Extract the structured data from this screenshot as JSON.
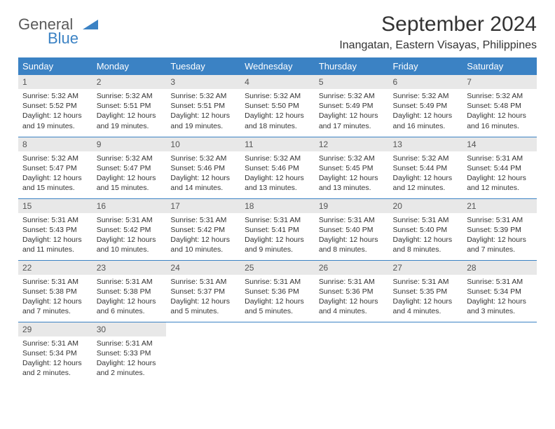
{
  "brand": {
    "name1": "General",
    "name2": "Blue",
    "color": "#3b82c4"
  },
  "title": "September 2024",
  "location": "Inangatan, Eastern Visayas, Philippines",
  "colors": {
    "header_bg": "#3b82c4",
    "header_text": "#ffffff",
    "daynum_bg": "#e8e8e8",
    "border": "#3b82c4",
    "text": "#333333"
  },
  "weekdays": [
    "Sunday",
    "Monday",
    "Tuesday",
    "Wednesday",
    "Thursday",
    "Friday",
    "Saturday"
  ],
  "days": [
    {
      "n": "1",
      "sr": "Sunrise: 5:32 AM",
      "ss": "Sunset: 5:52 PM",
      "dl": "Daylight: 12 hours and 19 minutes."
    },
    {
      "n": "2",
      "sr": "Sunrise: 5:32 AM",
      "ss": "Sunset: 5:51 PM",
      "dl": "Daylight: 12 hours and 19 minutes."
    },
    {
      "n": "3",
      "sr": "Sunrise: 5:32 AM",
      "ss": "Sunset: 5:51 PM",
      "dl": "Daylight: 12 hours and 19 minutes."
    },
    {
      "n": "4",
      "sr": "Sunrise: 5:32 AM",
      "ss": "Sunset: 5:50 PM",
      "dl": "Daylight: 12 hours and 18 minutes."
    },
    {
      "n": "5",
      "sr": "Sunrise: 5:32 AM",
      "ss": "Sunset: 5:49 PM",
      "dl": "Daylight: 12 hours and 17 minutes."
    },
    {
      "n": "6",
      "sr": "Sunrise: 5:32 AM",
      "ss": "Sunset: 5:49 PM",
      "dl": "Daylight: 12 hours and 16 minutes."
    },
    {
      "n": "7",
      "sr": "Sunrise: 5:32 AM",
      "ss": "Sunset: 5:48 PM",
      "dl": "Daylight: 12 hours and 16 minutes."
    },
    {
      "n": "8",
      "sr": "Sunrise: 5:32 AM",
      "ss": "Sunset: 5:47 PM",
      "dl": "Daylight: 12 hours and 15 minutes."
    },
    {
      "n": "9",
      "sr": "Sunrise: 5:32 AM",
      "ss": "Sunset: 5:47 PM",
      "dl": "Daylight: 12 hours and 15 minutes."
    },
    {
      "n": "10",
      "sr": "Sunrise: 5:32 AM",
      "ss": "Sunset: 5:46 PM",
      "dl": "Daylight: 12 hours and 14 minutes."
    },
    {
      "n": "11",
      "sr": "Sunrise: 5:32 AM",
      "ss": "Sunset: 5:46 PM",
      "dl": "Daylight: 12 hours and 13 minutes."
    },
    {
      "n": "12",
      "sr": "Sunrise: 5:32 AM",
      "ss": "Sunset: 5:45 PM",
      "dl": "Daylight: 12 hours and 13 minutes."
    },
    {
      "n": "13",
      "sr": "Sunrise: 5:32 AM",
      "ss": "Sunset: 5:44 PM",
      "dl": "Daylight: 12 hours and 12 minutes."
    },
    {
      "n": "14",
      "sr": "Sunrise: 5:31 AM",
      "ss": "Sunset: 5:44 PM",
      "dl": "Daylight: 12 hours and 12 minutes."
    },
    {
      "n": "15",
      "sr": "Sunrise: 5:31 AM",
      "ss": "Sunset: 5:43 PM",
      "dl": "Daylight: 12 hours and 11 minutes."
    },
    {
      "n": "16",
      "sr": "Sunrise: 5:31 AM",
      "ss": "Sunset: 5:42 PM",
      "dl": "Daylight: 12 hours and 10 minutes."
    },
    {
      "n": "17",
      "sr": "Sunrise: 5:31 AM",
      "ss": "Sunset: 5:42 PM",
      "dl": "Daylight: 12 hours and 10 minutes."
    },
    {
      "n": "18",
      "sr": "Sunrise: 5:31 AM",
      "ss": "Sunset: 5:41 PM",
      "dl": "Daylight: 12 hours and 9 minutes."
    },
    {
      "n": "19",
      "sr": "Sunrise: 5:31 AM",
      "ss": "Sunset: 5:40 PM",
      "dl": "Daylight: 12 hours and 8 minutes."
    },
    {
      "n": "20",
      "sr": "Sunrise: 5:31 AM",
      "ss": "Sunset: 5:40 PM",
      "dl": "Daylight: 12 hours and 8 minutes."
    },
    {
      "n": "21",
      "sr": "Sunrise: 5:31 AM",
      "ss": "Sunset: 5:39 PM",
      "dl": "Daylight: 12 hours and 7 minutes."
    },
    {
      "n": "22",
      "sr": "Sunrise: 5:31 AM",
      "ss": "Sunset: 5:38 PM",
      "dl": "Daylight: 12 hours and 7 minutes."
    },
    {
      "n": "23",
      "sr": "Sunrise: 5:31 AM",
      "ss": "Sunset: 5:38 PM",
      "dl": "Daylight: 12 hours and 6 minutes."
    },
    {
      "n": "24",
      "sr": "Sunrise: 5:31 AM",
      "ss": "Sunset: 5:37 PM",
      "dl": "Daylight: 12 hours and 5 minutes."
    },
    {
      "n": "25",
      "sr": "Sunrise: 5:31 AM",
      "ss": "Sunset: 5:36 PM",
      "dl": "Daylight: 12 hours and 5 minutes."
    },
    {
      "n": "26",
      "sr": "Sunrise: 5:31 AM",
      "ss": "Sunset: 5:36 PM",
      "dl": "Daylight: 12 hours and 4 minutes."
    },
    {
      "n": "27",
      "sr": "Sunrise: 5:31 AM",
      "ss": "Sunset: 5:35 PM",
      "dl": "Daylight: 12 hours and 4 minutes."
    },
    {
      "n": "28",
      "sr": "Sunrise: 5:31 AM",
      "ss": "Sunset: 5:34 PM",
      "dl": "Daylight: 12 hours and 3 minutes."
    },
    {
      "n": "29",
      "sr": "Sunrise: 5:31 AM",
      "ss": "Sunset: 5:34 PM",
      "dl": "Daylight: 12 hours and 2 minutes."
    },
    {
      "n": "30",
      "sr": "Sunrise: 5:31 AM",
      "ss": "Sunset: 5:33 PM",
      "dl": "Daylight: 12 hours and 2 minutes."
    }
  ]
}
